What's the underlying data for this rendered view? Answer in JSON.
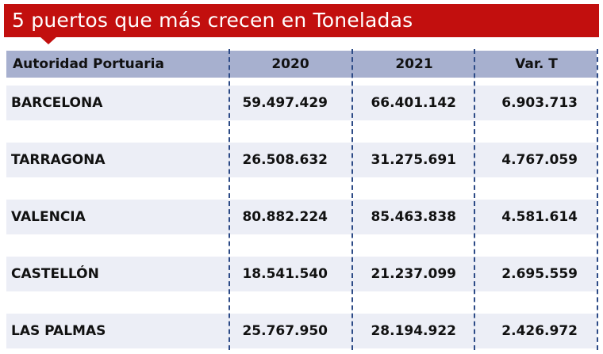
{
  "title": "5 puertos que más crecen en Toneladas",
  "table": {
    "headers": [
      "Autoridad Portuaria",
      "2020",
      "2021",
      "Var. T"
    ],
    "rows": [
      [
        "BARCELONA",
        "59.497.429",
        "66.401.142",
        "6.903.713"
      ],
      [
        "TARRAGONA",
        "26.508.632",
        "31.275.691",
        "4.767.059"
      ],
      [
        "VALENCIA",
        "80.882.224",
        "85.463.838",
        "4.581.614"
      ],
      [
        "CASTELLÓN",
        "18.541.540",
        "21.237.099",
        "2.695.559"
      ],
      [
        "LAS PALMAS",
        "25.767.950",
        "28.194.922",
        "2.426.972"
      ]
    ]
  },
  "colors": {
    "title_bg": "#c20f0e",
    "header_bg": "#a7b0cf",
    "row_bg": "#eceef6",
    "divider": "#2c4a86"
  }
}
